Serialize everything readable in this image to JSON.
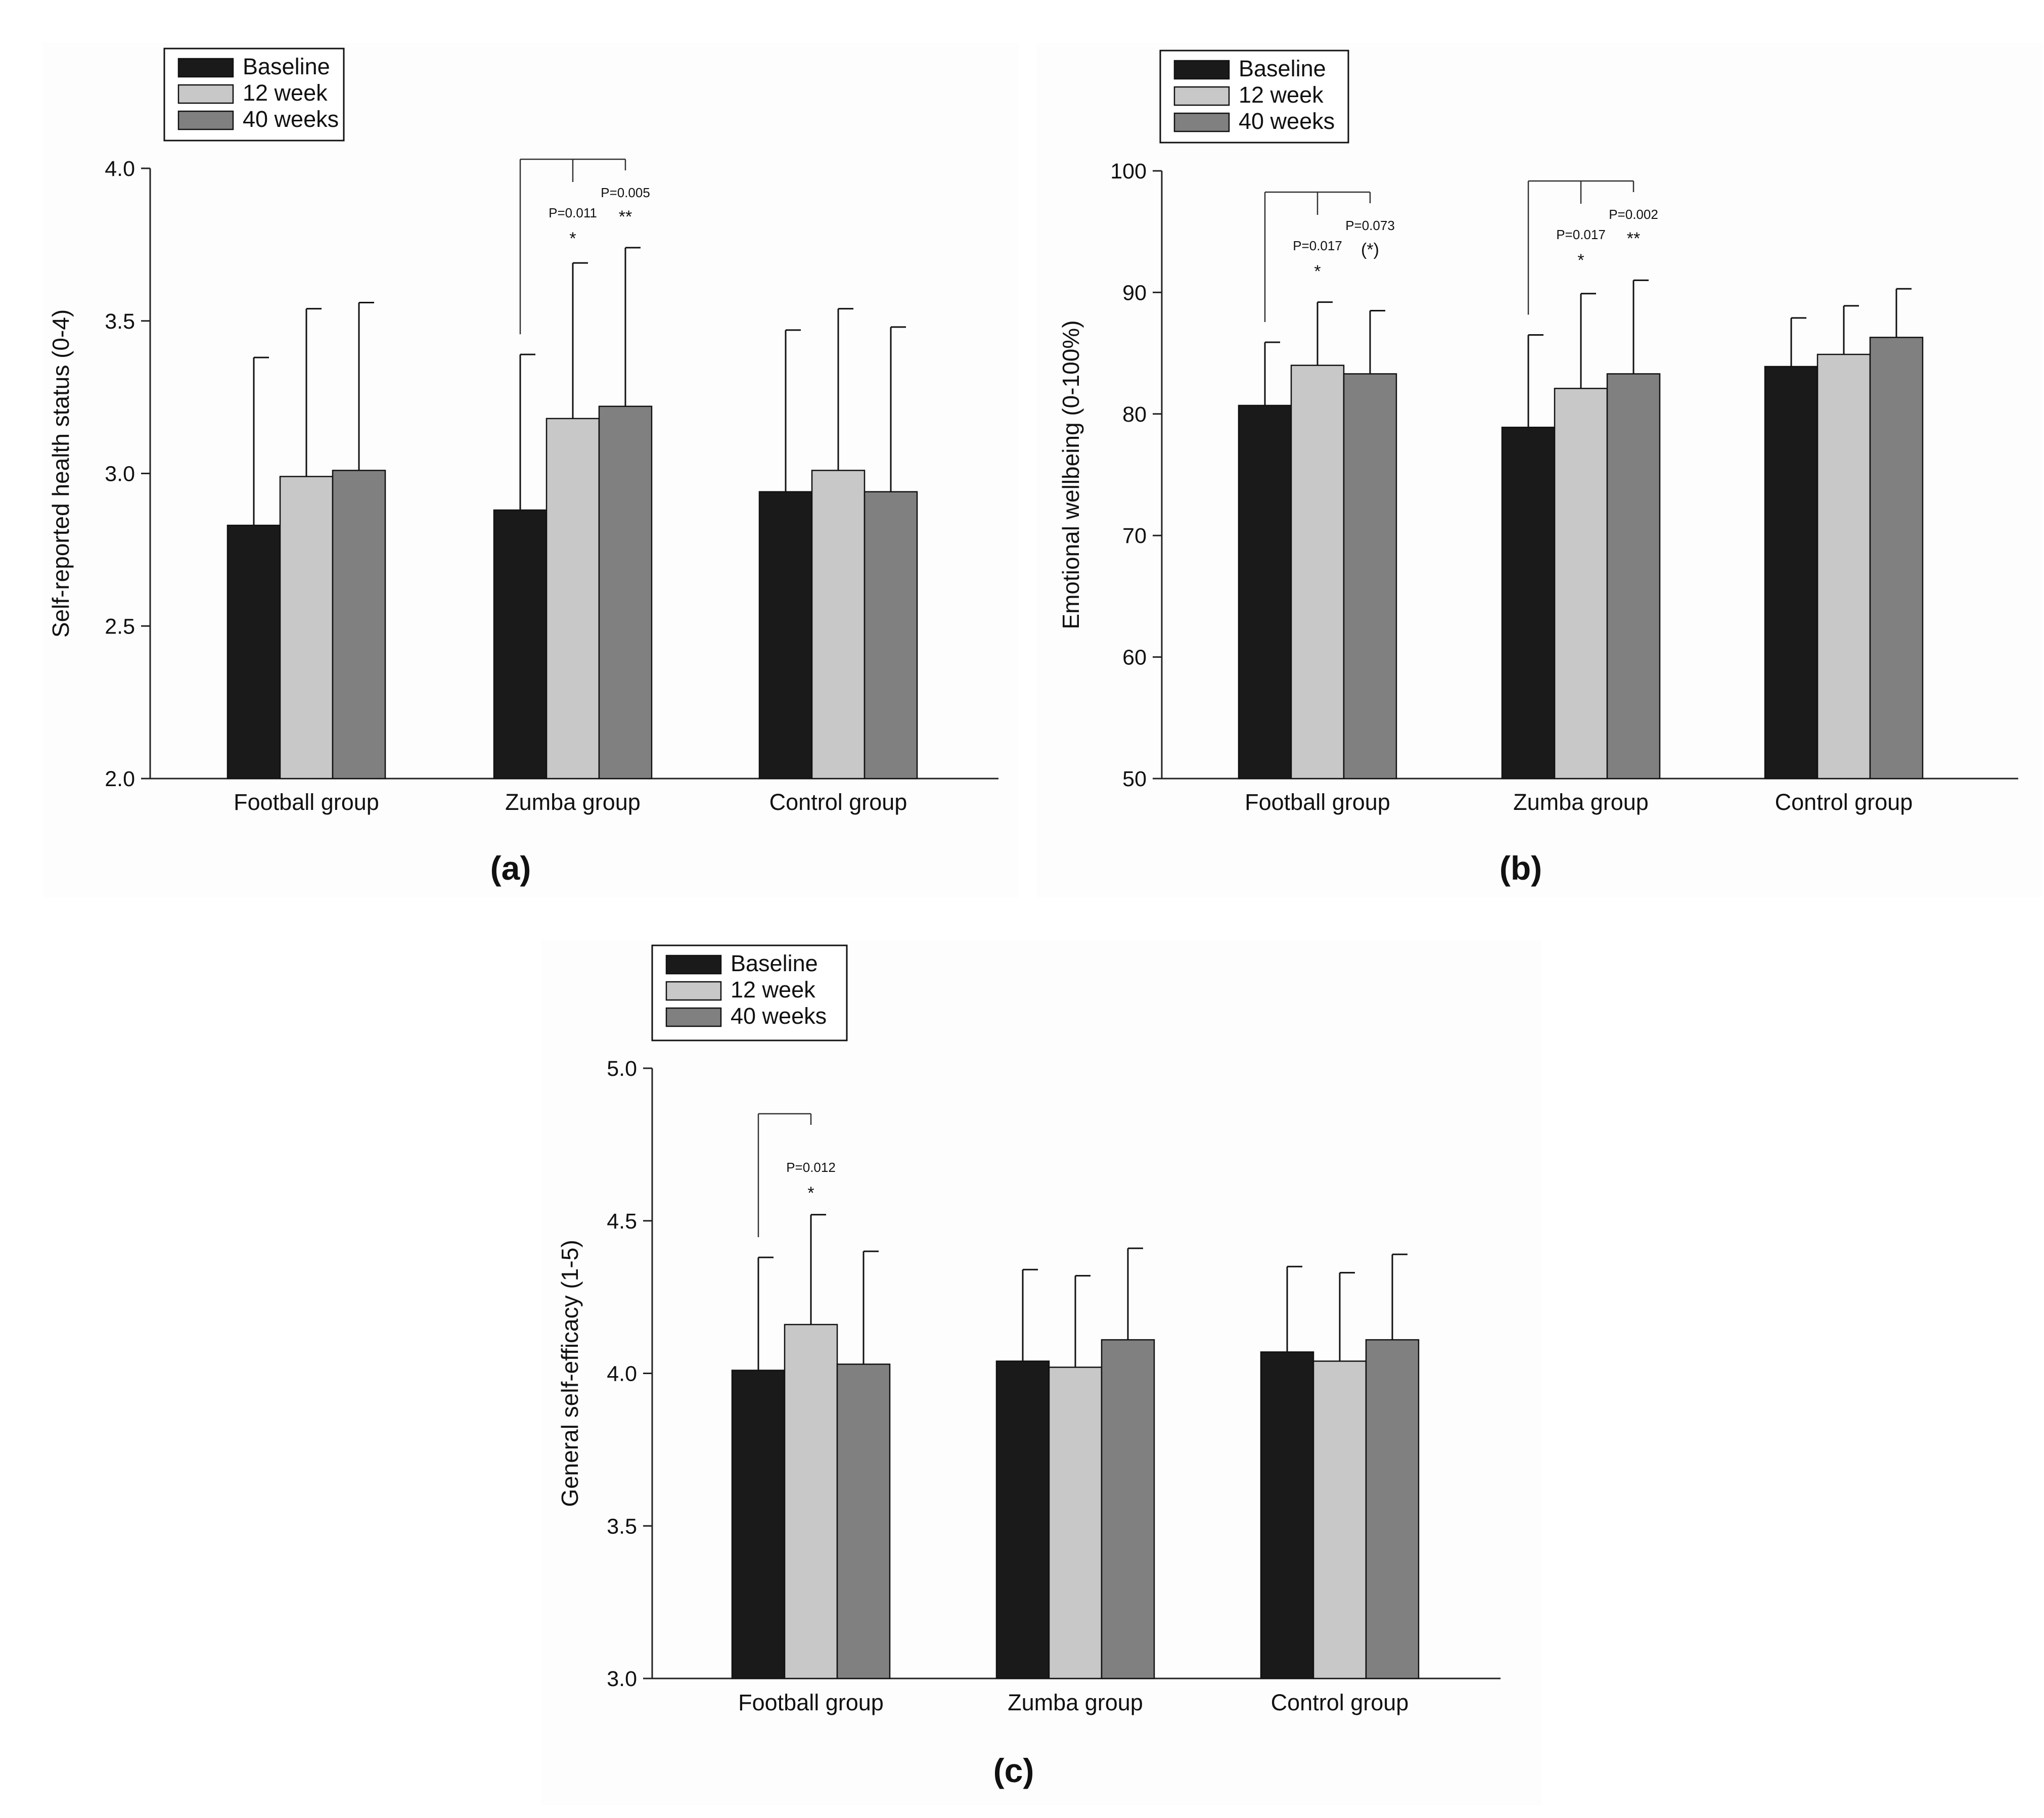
{
  "figure": {
    "legend_labels": [
      "Baseline",
      "12 week",
      "40 weeks"
    ],
    "colors": {
      "Baseline": "#1a1a1a",
      "12 week": "#c8c8c8",
      "40 weeks": "#808080",
      "axis": "#222222",
      "background": "#ffffff",
      "panel_bg": "#fdfdfd"
    }
  },
  "chart_data": [
    {
      "type": "bar",
      "panel_label": "(a)",
      "ylabel": "Self-reported health status (0-4)",
      "xlabel": "",
      "ylim": [
        2.0,
        4.0
      ],
      "yticks": [
        "2.0",
        "2.5",
        "3.0",
        "3.5",
        "4.0"
      ],
      "categories": [
        "Football group",
        "Zumba group",
        "Control group"
      ],
      "legend_position": "top-left",
      "series": [
        {
          "name": "Baseline",
          "values": [
            2.83,
            2.88,
            2.94
          ],
          "errors": [
            0.55,
            0.51,
            0.53
          ]
        },
        {
          "name": "12 week",
          "values": [
            2.99,
            3.18,
            3.01
          ],
          "errors": [
            0.55,
            0.51,
            0.53
          ]
        },
        {
          "name": "40 weeks",
          "values": [
            3.01,
            3.22,
            2.94
          ],
          "errors": [
            0.55,
            0.52,
            0.54
          ]
        }
      ],
      "annotations": [
        {
          "category": "Zumba group",
          "from_series": 0,
          "to_series": 1,
          "p_text": "P=0.011",
          "star": "*"
        },
        {
          "category": "Zumba group",
          "from_series": 0,
          "to_series": 2,
          "p_text": "P=0.005",
          "star": "**"
        }
      ]
    },
    {
      "type": "bar",
      "panel_label": "(b)",
      "ylabel": "Emotional wellbeing (0-100%)",
      "xlabel": "",
      "ylim": [
        50,
        100
      ],
      "yticks": [
        "50",
        "60",
        "70",
        "80",
        "90",
        "100"
      ],
      "categories": [
        "Football group",
        "Zumba group",
        "Control group"
      ],
      "legend_position": "top-left",
      "series": [
        {
          "name": "Baseline",
          "values": [
            80.7,
            78.9,
            83.9
          ],
          "errors": [
            5.2,
            7.6,
            4.0
          ]
        },
        {
          "name": "12 week",
          "values": [
            84.0,
            82.1,
            84.9
          ],
          "errors": [
            5.2,
            7.8,
            4.0
          ]
        },
        {
          "name": "40 weeks",
          "values": [
            83.3,
            83.3,
            86.3
          ],
          "errors": [
            5.2,
            7.7,
            4.0
          ]
        }
      ],
      "annotations": [
        {
          "category": "Football group",
          "from_series": 0,
          "to_series": 1,
          "p_text": "P=0.017",
          "star": "*"
        },
        {
          "category": "Football group",
          "from_series": 0,
          "to_series": 2,
          "p_text": "P=0.073",
          "star": "(*)"
        },
        {
          "category": "Zumba group",
          "from_series": 0,
          "to_series": 1,
          "p_text": "P=0.017",
          "star": "*"
        },
        {
          "category": "Zumba group",
          "from_series": 0,
          "to_series": 2,
          "p_text": "P=0.002",
          "star": "**"
        }
      ]
    },
    {
      "type": "bar",
      "panel_label": "(c)",
      "ylabel": "General self-efficacy (1-5)",
      "xlabel": "",
      "ylim": [
        3.0,
        5.0
      ],
      "yticks": [
        "3.0",
        "3.5",
        "4.0",
        "4.5",
        "5.0"
      ],
      "categories": [
        "Football group",
        "Zumba group",
        "Control group"
      ],
      "legend_position": "top-left",
      "series": [
        {
          "name": "Baseline",
          "values": [
            4.01,
            4.04,
            4.07
          ],
          "errors": [
            0.37,
            0.3,
            0.28
          ]
        },
        {
          "name": "12 week",
          "values": [
            4.16,
            4.02,
            4.04
          ],
          "errors": [
            0.36,
            0.3,
            0.29
          ]
        },
        {
          "name": "40 weeks",
          "values": [
            4.03,
            4.11,
            4.11
          ],
          "errors": [
            0.37,
            0.3,
            0.28
          ]
        }
      ],
      "annotations": [
        {
          "category": "Football group",
          "from_series": 0,
          "to_series": 1,
          "p_text": "P=0.012",
          "star": "*"
        }
      ]
    }
  ]
}
